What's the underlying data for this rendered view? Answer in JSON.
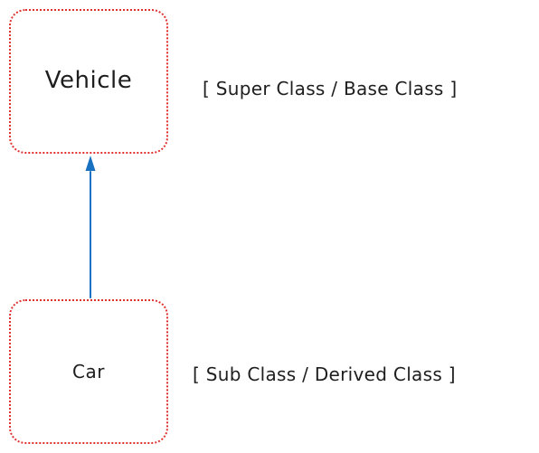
{
  "nodes": {
    "vehicle": {
      "label": "Vehicle"
    },
    "car": {
      "label": "Car"
    }
  },
  "annotations": {
    "super": "[ Super Class / Base Class ]",
    "sub": "[ Sub Class / Derived Class ]"
  },
  "colors": {
    "node_border": "#e03131",
    "arrow": "#1971c2",
    "text": "#1e1e1e"
  },
  "edges": [
    {
      "from": "car",
      "to": "vehicle",
      "style": "arrow"
    }
  ]
}
